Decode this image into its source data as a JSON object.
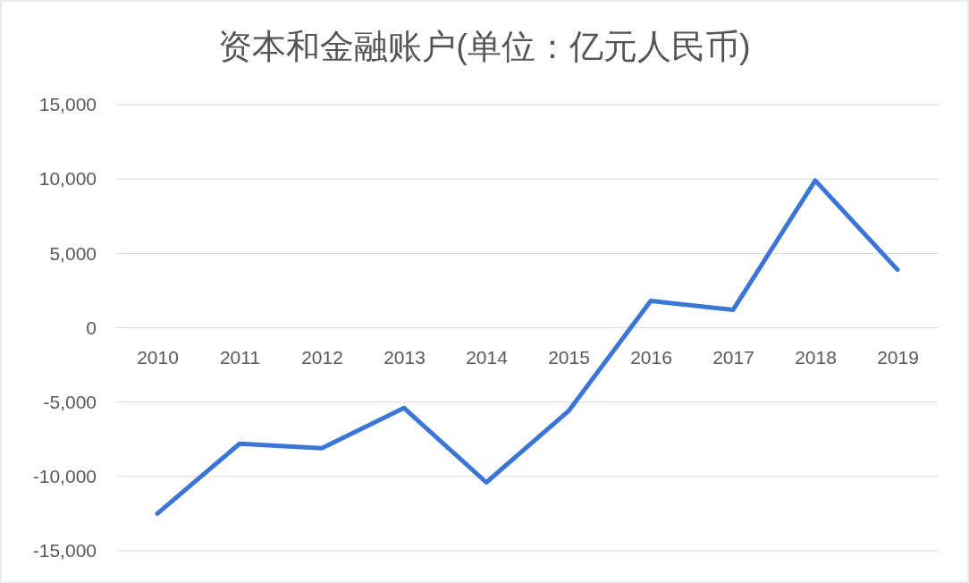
{
  "chart_data": {
    "type": "line",
    "title": "资本和金融账户(单位：亿元人民币)",
    "categories": [
      "2010",
      "2011",
      "2012",
      "2013",
      "2014",
      "2015",
      "2016",
      "2017",
      "2018",
      "2019"
    ],
    "series": [
      {
        "color": "#3b75d6",
        "values": [
          -12500,
          -7800,
          -8100,
          -5400,
          -10400,
          -5600,
          1800,
          1200,
          9900,
          3900
        ]
      }
    ],
    "ylim": [
      -15000,
      15000
    ],
    "yticks": [
      {
        "value": -15000,
        "label": "-15,000"
      },
      {
        "value": -10000,
        "label": "-10,000"
      },
      {
        "value": -5000,
        "label": "-5,000"
      },
      0,
      {
        "value": 5000,
        "label": "5,000"
      },
      {
        "value": 10000,
        "label": "10,000"
      },
      {
        "value": 15000,
        "label": "15,000"
      }
    ],
    "grid": "y",
    "marker": "none",
    "line_style": "solid"
  }
}
